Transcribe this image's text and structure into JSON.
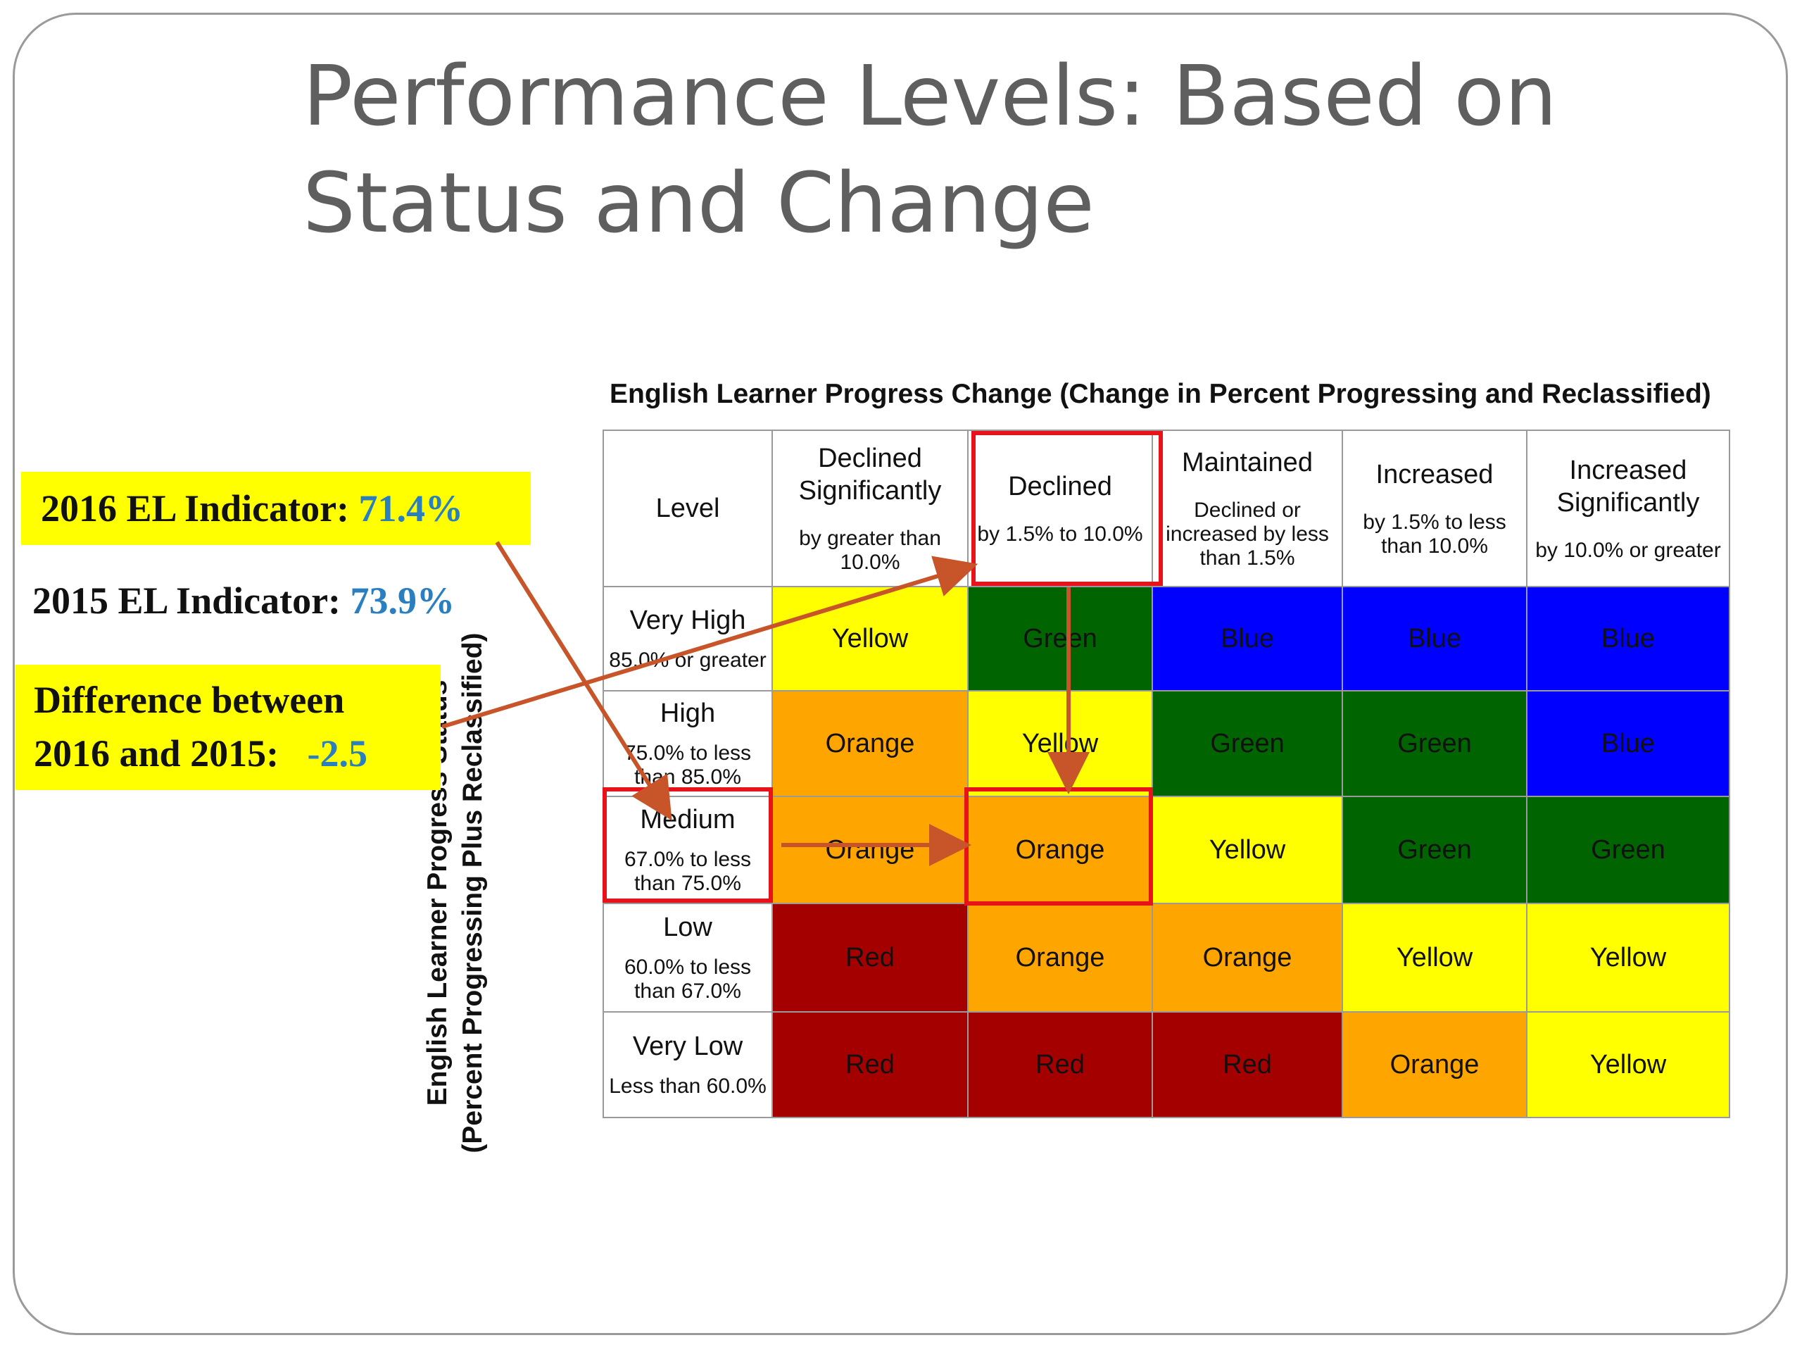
{
  "slide": {
    "title_line1": "Performance Levels: Based on",
    "title_line2": "Status and Change"
  },
  "callouts": {
    "el2016": {
      "label": "2016 EL Indicator:",
      "value": "71.4%"
    },
    "el2015": {
      "label": "2015 EL Indicator:",
      "value": "73.9%"
    },
    "difference": {
      "line1": "Difference between",
      "line2": "2016 and 2015:",
      "value": "-2.5"
    }
  },
  "matrix": {
    "caption": "English Learner Progress Change (Change in Percent Progressing and Reclassified)",
    "y_caption_line1": "English Learner Progress Status",
    "y_caption_line2": "(Percent Progressing Plus Reclassified)",
    "level_header": "Level",
    "columns": [
      {
        "title": "Declined Significantly",
        "sub": "by greater than 10.0%"
      },
      {
        "title": "Declined",
        "sub": "by 1.5% to 10.0%"
      },
      {
        "title": "Maintained",
        "sub": "Declined or increased by less than 1.5%"
      },
      {
        "title": "Increased",
        "sub": "by 1.5% to less than 10.0%"
      },
      {
        "title": "Increased Significantly",
        "sub": "by 10.0% or greater"
      }
    ],
    "rows": [
      {
        "title": "Very High",
        "sub": "85.0% or greater",
        "cells": [
          "Yellow",
          "Green",
          "Blue",
          "Blue",
          "Blue"
        ]
      },
      {
        "title": "High",
        "sub": "75.0% to less than 85.0%",
        "cells": [
          "Orange",
          "Yellow",
          "Green",
          "Green",
          "Blue"
        ]
      },
      {
        "title": "Medium",
        "sub": "67.0% to less than 75.0%",
        "cells": [
          "Orange",
          "Orange",
          "Yellow",
          "Green",
          "Green"
        ]
      },
      {
        "title": "Low",
        "sub": "60.0% to less than 67.0%",
        "cells": [
          "Red",
          "Orange",
          "Orange",
          "Yellow",
          "Yellow"
        ]
      },
      {
        "title": "Very Low",
        "sub": "Less than 60.0%",
        "cells": [
          "Red",
          "Red",
          "Red",
          "Orange",
          "Yellow"
        ]
      }
    ],
    "colors": {
      "Yellow": "#ffff00",
      "Green": "#006400",
      "Blue": "#0000ff",
      "Orange": "#ffa500",
      "Red": "#a50000"
    },
    "highlight_color": "#e8121a",
    "arrow_color": "#c8552a"
  }
}
